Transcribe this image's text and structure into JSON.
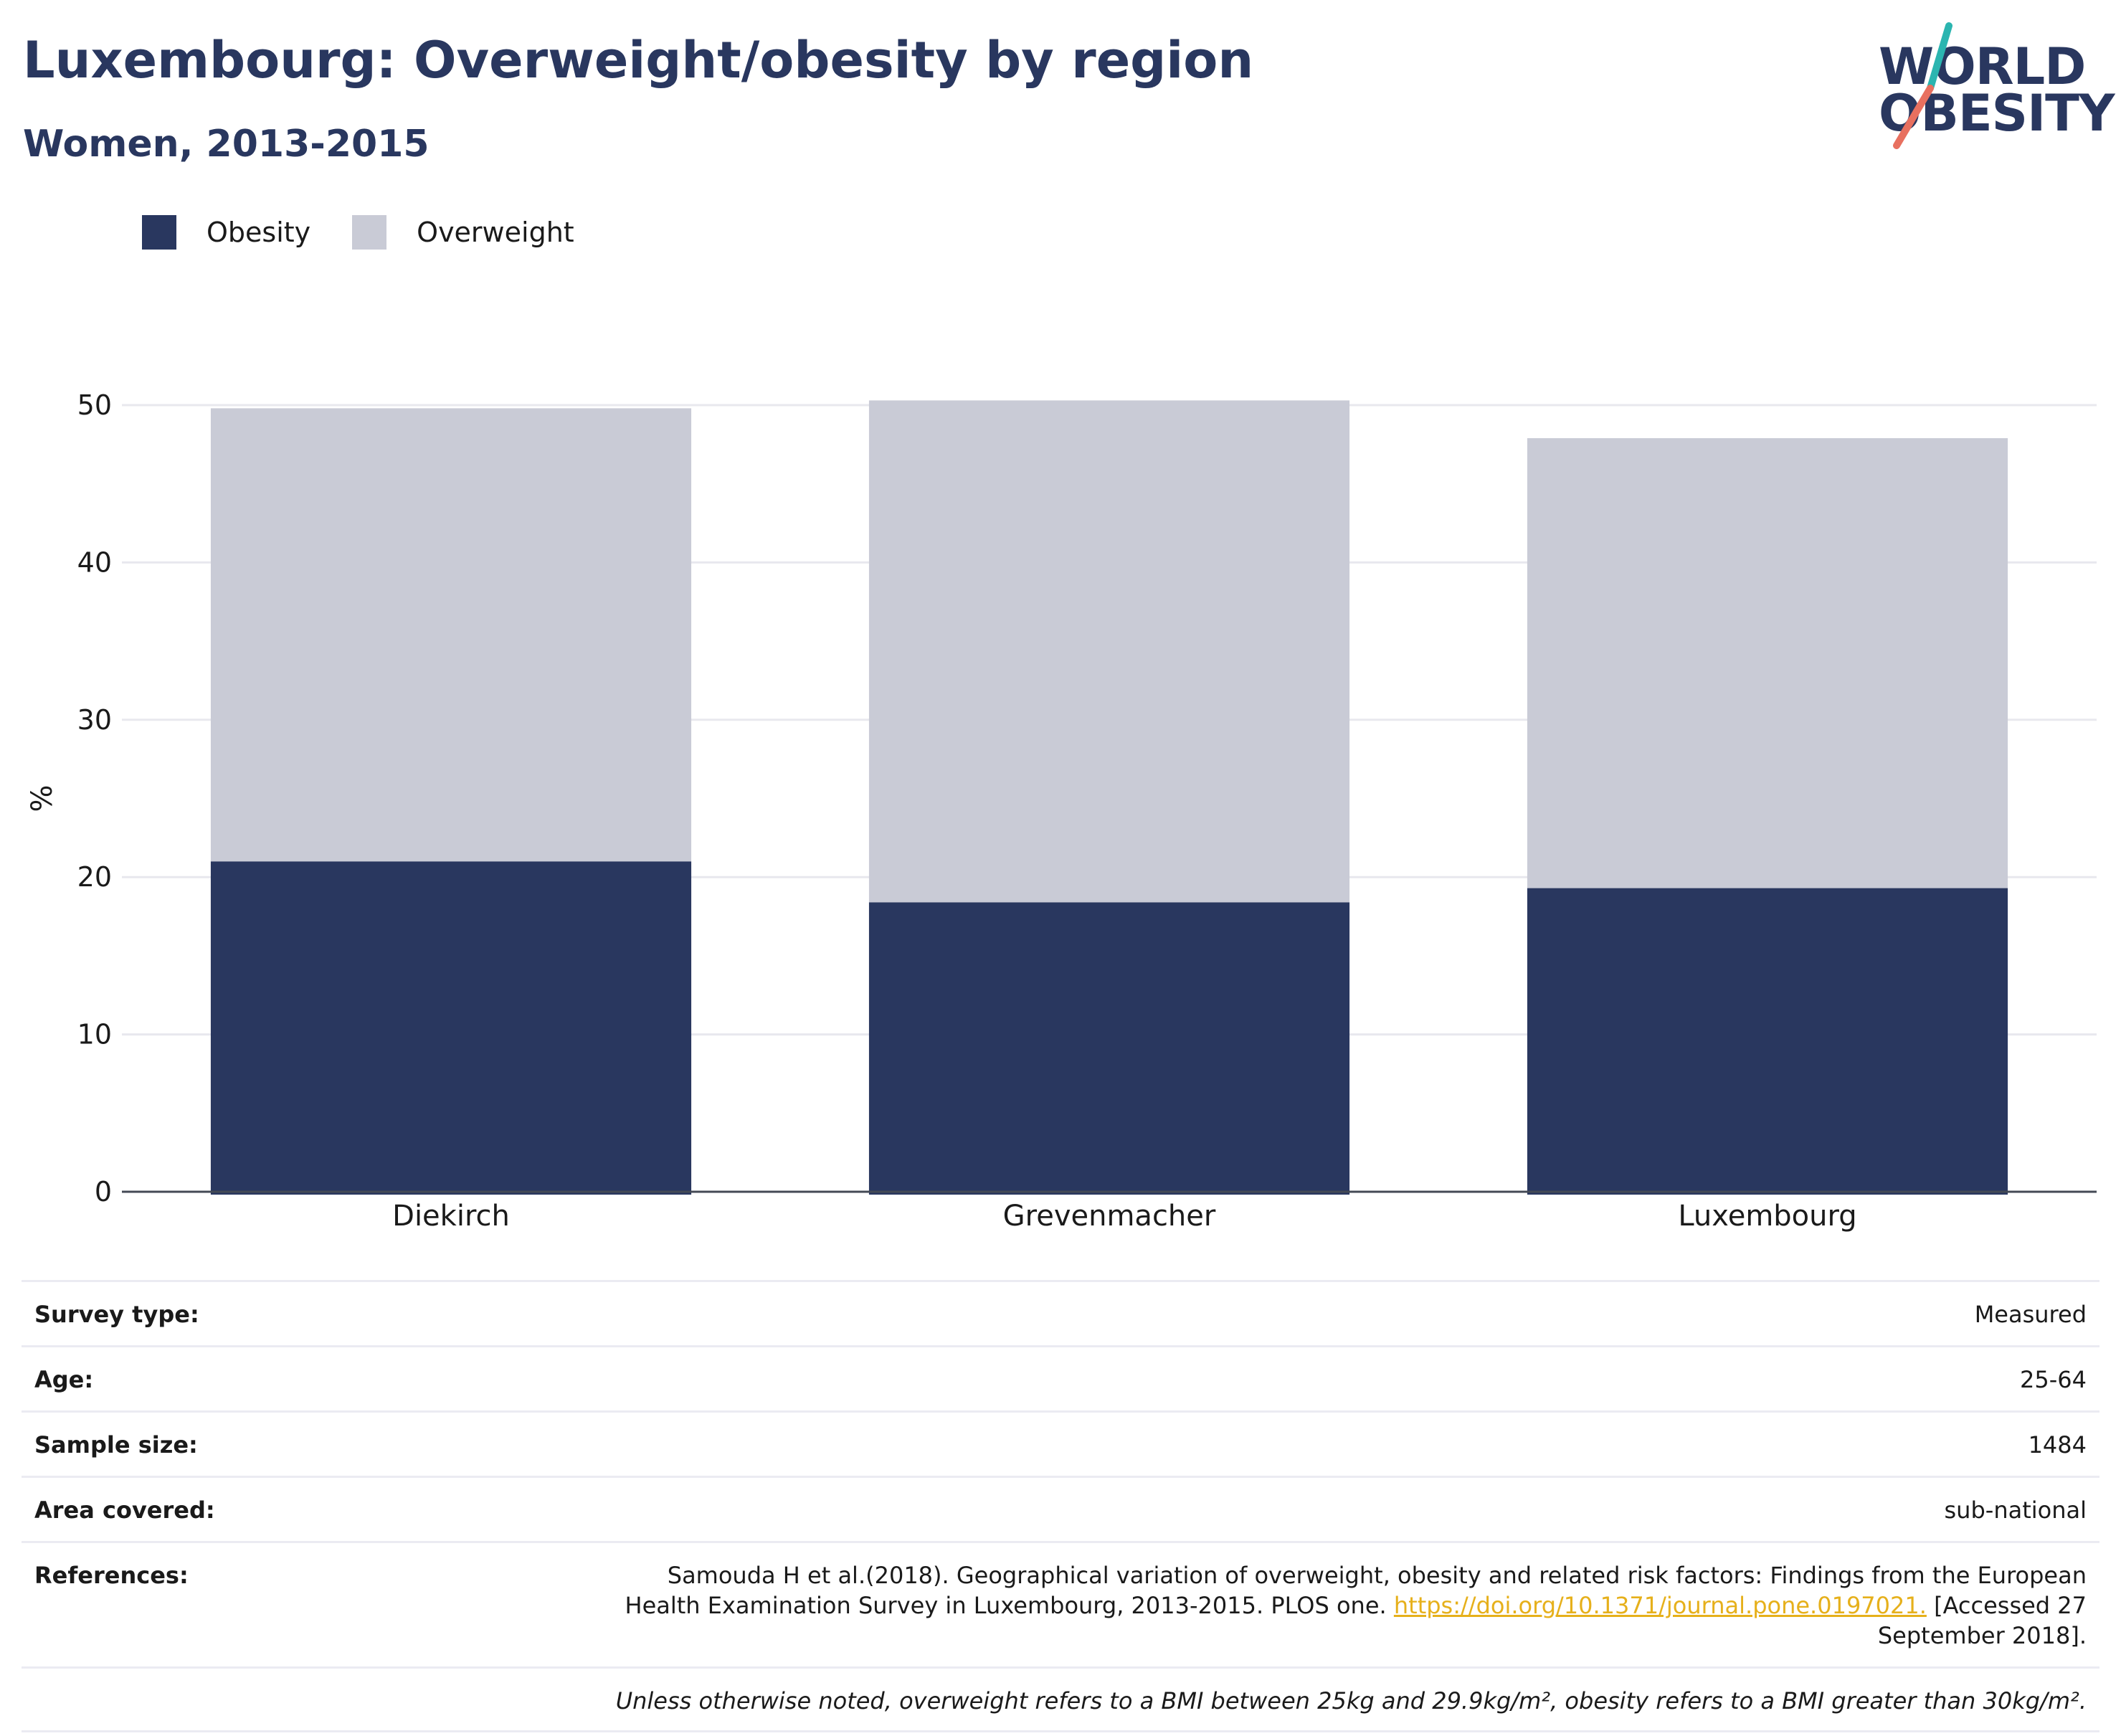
{
  "header": {
    "title": "Luxembourg: Overweight/obesity by region",
    "subtitle": "Women, 2013-2015"
  },
  "logo": {
    "line1": "WORLD",
    "line2": "OBESITY",
    "colors": {
      "text": "#29375f",
      "slash_top": "#2bb5b0",
      "slash_bottom": "#e8705f"
    }
  },
  "chart_data": {
    "type": "bar",
    "stacked": true,
    "categories": [
      "Diekirch",
      "Grevenmacher",
      "Luxembourg"
    ],
    "series": [
      {
        "name": "Obesity",
        "values": [
          21.0,
          18.4,
          19.3
        ],
        "color": "#29375f"
      },
      {
        "name": "Overweight",
        "values": [
          28.8,
          31.9,
          28.6
        ],
        "color": "#c9cbd6"
      }
    ],
    "ylabel": "%",
    "xlabel": "",
    "ylim": [
      0,
      50
    ],
    "yticks": [
      0,
      10,
      20,
      30,
      40,
      50
    ],
    "grid": true,
    "legend_position": "top-left"
  },
  "info": {
    "survey_type": {
      "label": "Survey type:",
      "value": "Measured"
    },
    "age": {
      "label": "Age:",
      "value": "25-64"
    },
    "sample_size": {
      "label": "Sample size:",
      "value": "1484"
    },
    "area_covered": {
      "label": "Area covered:",
      "value": "sub-national"
    },
    "references": {
      "label": "References:",
      "text_before": "Samouda H et al.(2018). Geographical variation of overweight, obesity and related risk factors: Findings from the European Health Examination Survey in Luxembourg, 2013-2015. PLOS one. ",
      "link": "https://doi.org/10.1371/journal.pone.0197021.",
      "text_after": " [Accessed 27 September 2018]."
    },
    "note": "Unless otherwise noted, overweight refers to a BMI between 25kg and 29.9kg/m², obesity refers to a BMI greater than 30kg/m²."
  }
}
